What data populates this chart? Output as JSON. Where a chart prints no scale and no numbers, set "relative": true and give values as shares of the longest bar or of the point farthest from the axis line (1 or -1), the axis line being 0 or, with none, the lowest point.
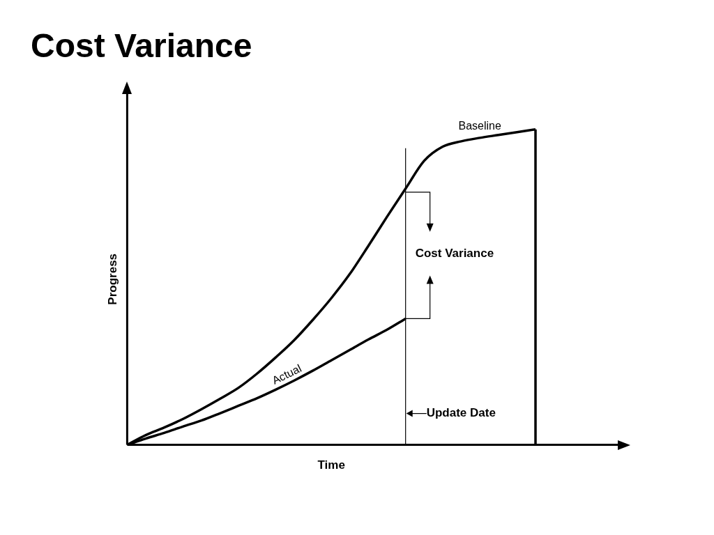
{
  "chart_data": {
    "type": "line",
    "title": "Cost Variance",
    "xlabel": "Time",
    "ylabel": "Progress",
    "relative": true,
    "grid": false,
    "legend": false,
    "marker": "none",
    "line_style": "solid",
    "categories": [
      null,
      null,
      null,
      null,
      null,
      null,
      null,
      null,
      null,
      null,
      null,
      null,
      null,
      null,
      null,
      null,
      null,
      null,
      null,
      null,
      null,
      null,
      null
    ],
    "series": [
      {
        "name": "Baseline",
        "color": "#000000",
        "values": [
          0,
          0.031,
          0.055,
          0.082,
          0.113,
          0.146,
          0.181,
          0.226,
          0.277,
          0.332,
          0.396,
          0.465,
          0.542,
          0.631,
          0.723,
          0.812,
          0.9,
          0.945,
          0.962,
          0.973,
          0.982,
          0.991,
          1
        ]
      },
      {
        "name": "Actual",
        "color": "#000000",
        "values": [
          0,
          0.02,
          0.038,
          0.058,
          0.077,
          0.1,
          0.124,
          0.148,
          0.175,
          0.204,
          0.235,
          0.268,
          0.301,
          0.334,
          0.365,
          0.4,
          null,
          null,
          null,
          null,
          null,
          null,
          null
        ]
      }
    ],
    "annotations": [
      "Cost Variance",
      "Update Date"
    ]
  }
}
